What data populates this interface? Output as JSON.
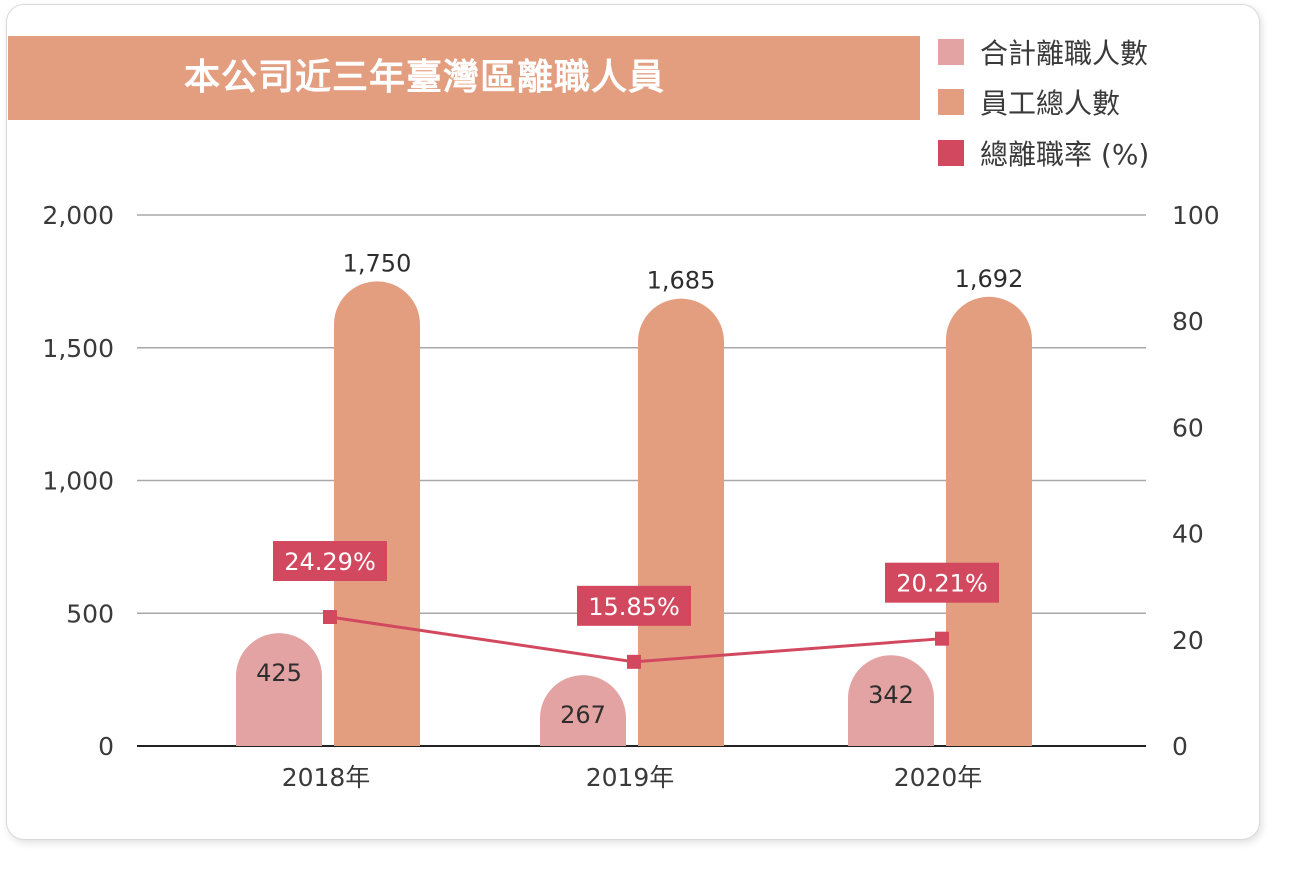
{
  "chart_data": {
    "type": "bar",
    "title": "本公司近三年臺灣區離職人員",
    "categories": [
      "2018年",
      "2019年",
      "2020年"
    ],
    "series": [
      {
        "name": "合計離職人數",
        "type": "bar",
        "axis": "left",
        "color": "#e3a3a3",
        "values": [
          425,
          267,
          342
        ],
        "labels": [
          "425",
          "267",
          "342"
        ]
      },
      {
        "name": "員工總人數",
        "type": "bar",
        "axis": "left",
        "color": "#e39e80",
        "values": [
          1750,
          1685,
          1692
        ],
        "labels": [
          "1,750",
          "1,685",
          "1,692"
        ]
      },
      {
        "name": "總離職率 (%)",
        "type": "line",
        "axis": "right",
        "color": "#d2495f",
        "values": [
          24.29,
          15.85,
          20.21
        ],
        "labels": [
          "24.29%",
          "15.85%",
          "20.21%"
        ]
      }
    ],
    "y_left": {
      "min": 0,
      "max": 2000,
      "ticks": [
        0,
        500,
        1000,
        1500,
        2000
      ],
      "tick_labels": [
        "0",
        "500",
        "1,000",
        "1,500",
        "2,000"
      ]
    },
    "y_right": {
      "min": 0,
      "max": 100,
      "ticks": [
        0,
        20,
        40,
        60,
        80,
        100
      ],
      "tick_labels": [
        "0",
        "20",
        "40",
        "60",
        "80",
        "100"
      ]
    },
    "grid": true,
    "legend_position": "top-right"
  }
}
